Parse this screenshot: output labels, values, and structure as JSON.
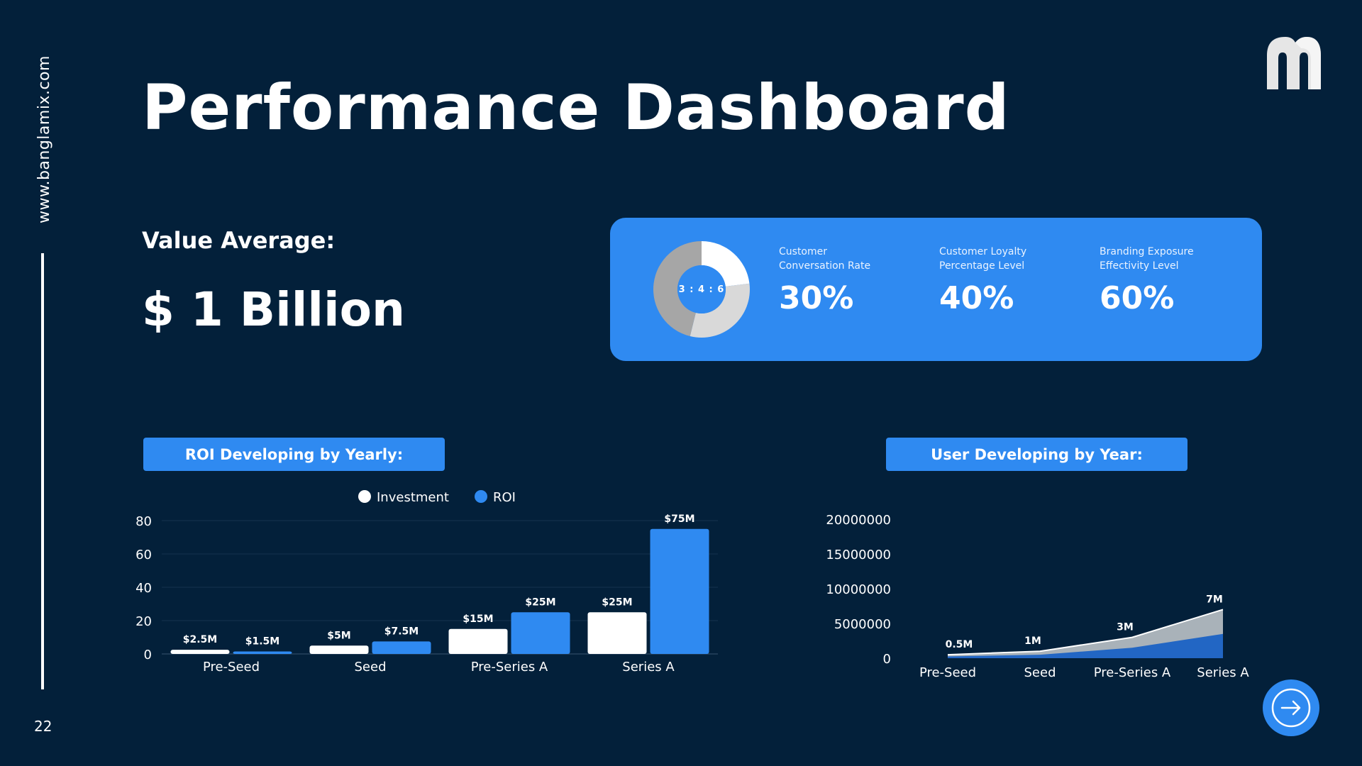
{
  "sidebar": {
    "website": "www.banglamix.com",
    "page_number": "22"
  },
  "header": {
    "title": "Performance Dashboard",
    "logo_icon": "m-logo-icon"
  },
  "value_average": {
    "label": "Value Average:",
    "amount": "$ 1 Billion"
  },
  "kpi_card": {
    "ratio_label": "3 : 4 : 6",
    "donut_chart": {
      "type": "pie",
      "values": [
        3,
        4,
        6
      ],
      "colors": [
        "#ffffff",
        "#d9d9d9",
        "#a6a6a6"
      ]
    },
    "items": [
      {
        "label_line1": "Customer",
        "label_line2": "Conversation Rate",
        "value": "30%"
      },
      {
        "label_line1": "Customer Loyalty",
        "label_line2": "Percentage Level",
        "value": "40%"
      },
      {
        "label_line1": "Branding Exposure",
        "label_line2": "Effectivity Level",
        "value": "60%"
      }
    ]
  },
  "roi_section": {
    "header": "ROI Developing by Yearly:"
  },
  "user_section": {
    "header": "User Developing by Year:"
  },
  "chart_data": [
    {
      "type": "bar",
      "categories": [
        "Pre-Seed",
        "Seed",
        "Pre-Series A",
        "Series A"
      ],
      "series": [
        {
          "name": "Investment",
          "values": [
            2.5,
            5,
            15,
            25
          ],
          "labels": [
            "$2.5M",
            "$5M",
            "$15M",
            "$25M"
          ],
          "color": "#ffffff"
        },
        {
          "name": "ROI",
          "values": [
            1.5,
            7.5,
            25,
            75
          ],
          "labels": [
            "$1.5M",
            "$7.5M",
            "$25M",
            "$75M"
          ],
          "color": "#2f8af1"
        }
      ],
      "yticks": [
        "0",
        "20",
        "40",
        "60",
        "80"
      ],
      "ylim": [
        0,
        80
      ],
      "legend": "top-center",
      "grid": true
    },
    {
      "type": "area",
      "categories": [
        "Pre-Seed",
        "Seed",
        "Pre-Series A",
        "Series A"
      ],
      "series": [
        {
          "values": [
            500000,
            1000000,
            3000000,
            7000000
          ],
          "labels": [
            "0.5M",
            "1M",
            "3M",
            "7M"
          ],
          "color": "#2266c4"
        },
        {
          "values": [
            500000,
            1000000,
            3000000,
            7000000
          ],
          "color": "#a9b2b9"
        }
      ],
      "yticks": [
        "0",
        "5000000",
        "10000000",
        "15000000",
        "20000000"
      ],
      "ylim": [
        0,
        20000000
      ],
      "grid": false
    }
  ],
  "nav": {
    "next_icon": "arrow-right-icon"
  }
}
